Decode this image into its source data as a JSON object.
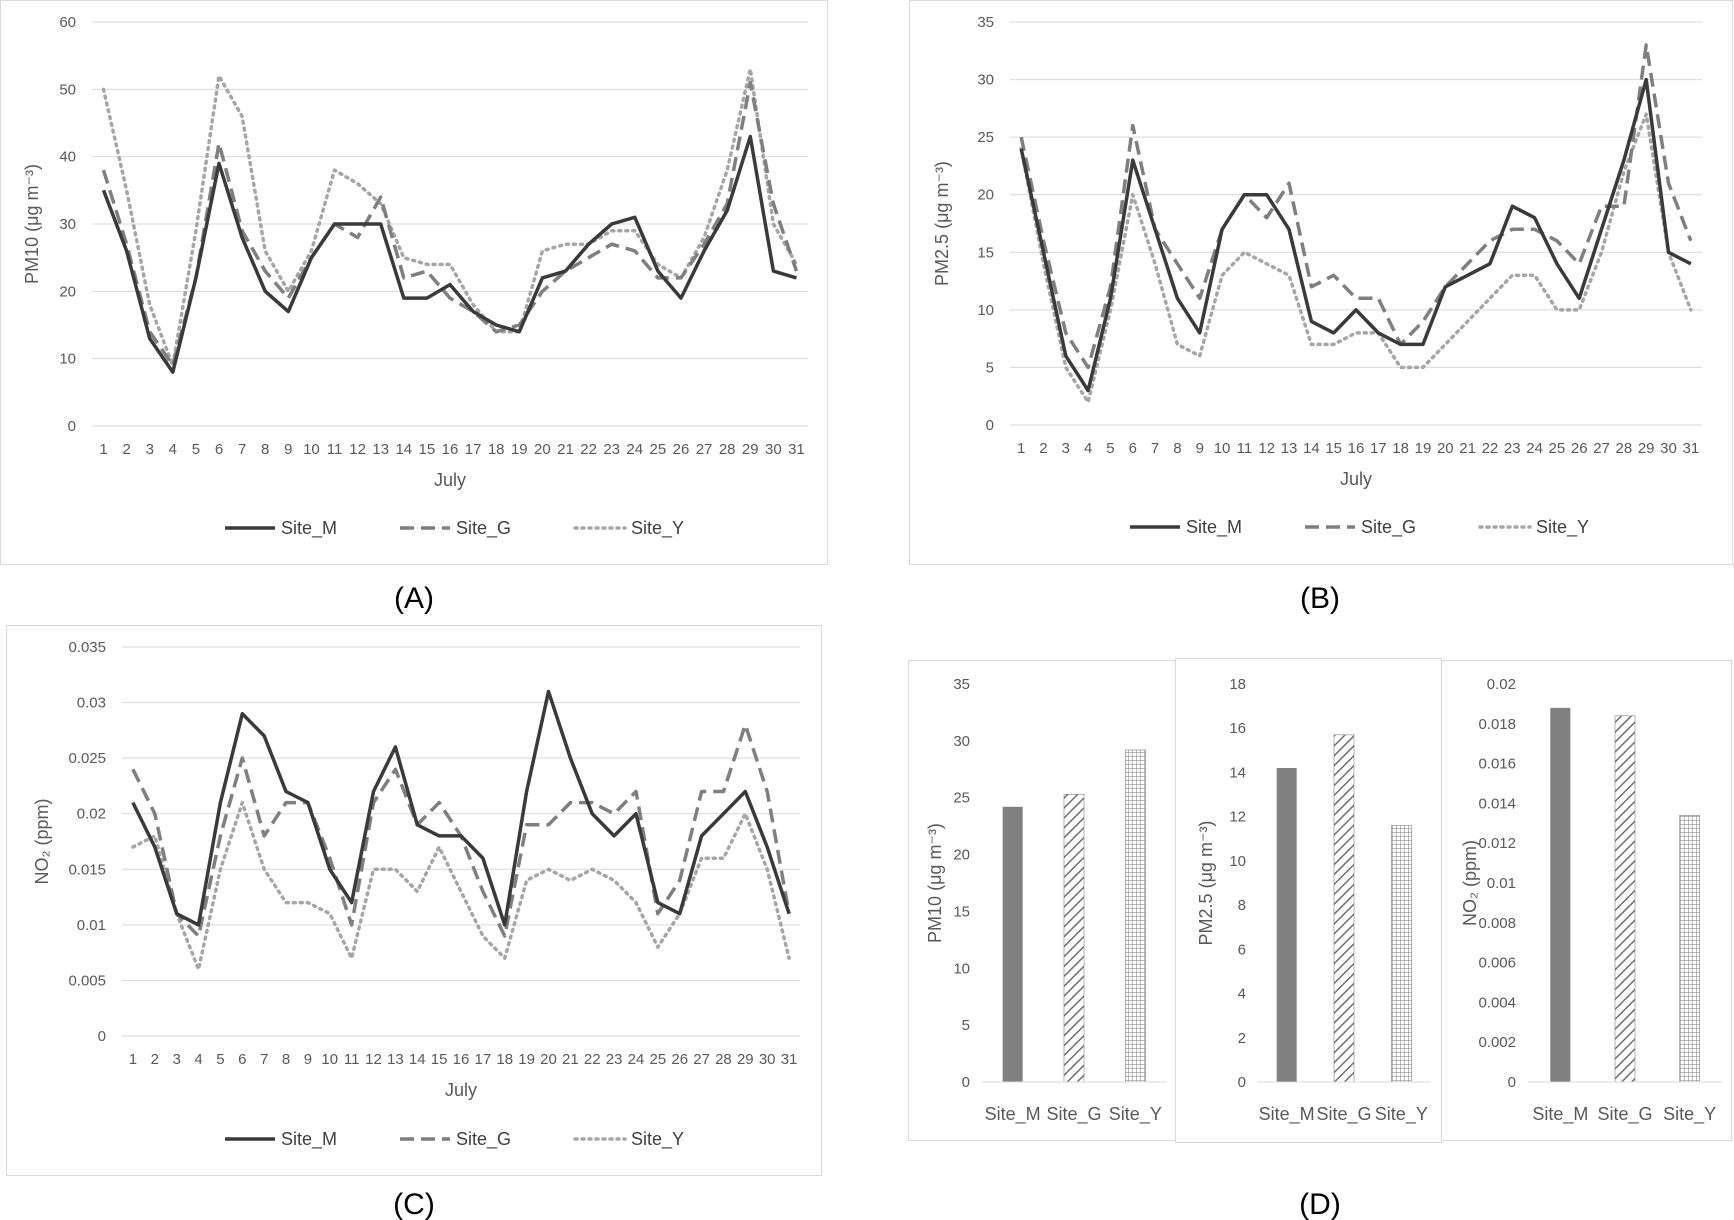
{
  "panel_labels": [
    "(A)",
    "(B)",
    "(C)",
    "(D)"
  ],
  "colors": {
    "site_m": "#3a3a3a",
    "site_g": "#7f7f7f",
    "site_y": "#a6a6a6",
    "grid": "#d9d9d9",
    "text": "#595959"
  },
  "chart_data": [
    {
      "id": "A",
      "type": "line",
      "xlabel": "July",
      "ylabel": "PM10 (μg m⁻³)",
      "ylim": [
        0,
        60
      ],
      "yticks": [
        "0",
        "10",
        "20",
        "30",
        "40",
        "50",
        "60"
      ],
      "x": [
        1,
        2,
        3,
        4,
        5,
        6,
        7,
        8,
        9,
        10,
        11,
        12,
        13,
        14,
        15,
        16,
        17,
        18,
        19,
        20,
        21,
        22,
        23,
        24,
        25,
        26,
        27,
        28,
        29,
        30,
        31
      ],
      "x_ticks": [
        "1",
        "2",
        "3",
        "4",
        "5",
        "6",
        "7",
        "8",
        "9",
        "10",
        "11",
        "12",
        "13",
        "14",
        "15",
        "16",
        "17",
        "18",
        "19",
        "20",
        "21",
        "22",
        "23",
        "24",
        "25",
        "26",
        "27",
        "28",
        "29",
        "30",
        "31"
      ],
      "legend": "bottom",
      "grid": true,
      "series": [
        {
          "name": "Site_M",
          "style": "solid",
          "values": [
            35,
            26,
            13,
            8,
            22,
            39,
            28,
            20,
            17,
            25,
            30,
            30,
            30,
            19,
            19,
            21,
            17,
            15,
            14,
            22,
            23,
            27,
            30,
            31,
            23,
            19,
            26,
            32,
            43,
            23,
            22
          ]
        },
        {
          "name": "Site_G",
          "style": "dashed",
          "values": [
            38,
            27,
            14,
            9,
            22,
            42,
            29,
            23,
            19,
            25,
            30,
            28,
            34,
            22,
            23,
            19,
            17,
            14,
            15,
            20,
            23,
            25,
            27,
            26,
            22,
            22,
            27,
            33,
            51,
            33,
            23
          ]
        },
        {
          "name": "Site_Y",
          "style": "dotted",
          "values": [
            50,
            35,
            18,
            9,
            29,
            52,
            46,
            26,
            20,
            26,
            38,
            36,
            33,
            25,
            24,
            24,
            18,
            14,
            14,
            26,
            27,
            27,
            29,
            29,
            24,
            22,
            28,
            38,
            53,
            30,
            24
          ]
        }
      ]
    },
    {
      "id": "B",
      "type": "line",
      "xlabel": "July",
      "ylabel": "PM2.5 (μg m⁻³)",
      "ylim": [
        0,
        35
      ],
      "yticks": [
        "0",
        "5",
        "10",
        "15",
        "20",
        "25",
        "30",
        "35"
      ],
      "x": [
        1,
        2,
        3,
        4,
        5,
        6,
        7,
        8,
        9,
        10,
        11,
        12,
        13,
        14,
        15,
        16,
        17,
        18,
        19,
        20,
        21,
        22,
        23,
        24,
        25,
        26,
        27,
        28,
        29,
        30,
        31
      ],
      "x_ticks": [
        "1",
        "2",
        "3",
        "4",
        "5",
        "6",
        "7",
        "8",
        "9",
        "10",
        "11",
        "12",
        "13",
        "14",
        "15",
        "16",
        "17",
        "18",
        "19",
        "20",
        "21",
        "22",
        "23",
        "24",
        "25",
        "26",
        "27",
        "28",
        "29",
        "30",
        "31"
      ],
      "legend": "bottom",
      "grid": true,
      "series": [
        {
          "name": "Site_M",
          "style": "solid",
          "values": [
            24,
            15,
            6,
            3,
            11,
            23,
            17,
            11,
            8,
            17,
            20,
            20,
            17,
            9,
            8,
            10,
            8,
            7,
            7,
            12,
            13,
            14,
            19,
            18,
            14,
            11,
            17,
            23,
            30,
            15,
            14
          ]
        },
        {
          "name": "Site_G",
          "style": "dashed",
          "values": [
            25,
            16,
            8,
            5,
            12,
            26,
            17,
            14,
            11,
            17,
            20,
            18,
            21,
            12,
            13,
            11,
            11,
            7,
            9,
            12,
            14,
            16,
            17,
            17,
            16,
            14,
            19,
            19,
            33,
            21,
            16
          ]
        },
        {
          "name": "Site_Y",
          "style": "dotted",
          "values": [
            24,
            14,
            5,
            2,
            10,
            20,
            14,
            7,
            6,
            13,
            15,
            14,
            13,
            7,
            7,
            8,
            8,
            5,
            5,
            7,
            9,
            11,
            13,
            13,
            10,
            10,
            15,
            22,
            27,
            15,
            10
          ]
        }
      ]
    },
    {
      "id": "C",
      "type": "line",
      "xlabel": "July",
      "ylabel": "NO₂ (ppm)",
      "ylim": [
        0,
        0.035
      ],
      "yticks": [
        "0",
        "0.005",
        "0.01",
        "0.015",
        "0.02",
        "0.025",
        "0.03",
        "0.035"
      ],
      "x": [
        1,
        2,
        3,
        4,
        5,
        6,
        7,
        8,
        9,
        10,
        11,
        12,
        13,
        14,
        15,
        16,
        17,
        18,
        19,
        20,
        21,
        22,
        23,
        24,
        25,
        26,
        27,
        28,
        29,
        30,
        31
      ],
      "x_ticks": [
        "1",
        "2",
        "3",
        "4",
        "5",
        "6",
        "7",
        "8",
        "9",
        "10",
        "11",
        "12",
        "13",
        "14",
        "15",
        "16",
        "17",
        "18",
        "19",
        "20",
        "21",
        "22",
        "23",
        "24",
        "25",
        "26",
        "27",
        "28",
        "29",
        "30",
        "31"
      ],
      "legend": "bottom",
      "grid": true,
      "series": [
        {
          "name": "Site_M",
          "style": "solid",
          "values": [
            0.021,
            0.017,
            0.011,
            0.01,
            0.021,
            0.029,
            0.027,
            0.022,
            0.021,
            0.015,
            0.012,
            0.022,
            0.026,
            0.019,
            0.018,
            0.018,
            0.016,
            0.01,
            0.022,
            0.031,
            0.025,
            0.02,
            0.018,
            0.02,
            0.012,
            0.011,
            0.018,
            0.02,
            0.022,
            0.017,
            0.011
          ]
        },
        {
          "name": "Site_G",
          "style": "dashed",
          "values": [
            0.024,
            0.02,
            0.011,
            0.009,
            0.018,
            0.025,
            0.018,
            0.021,
            0.021,
            0.016,
            0.01,
            0.021,
            0.024,
            0.019,
            0.021,
            0.018,
            0.013,
            0.009,
            0.019,
            0.019,
            0.021,
            0.021,
            0.02,
            0.022,
            0.011,
            0.014,
            0.022,
            0.022,
            0.028,
            0.022,
            0.011
          ]
        },
        {
          "name": "Site_Y",
          "style": "dotted",
          "values": [
            0.017,
            0.018,
            0.011,
            0.006,
            0.015,
            0.021,
            0.015,
            0.012,
            0.012,
            0.011,
            0.007,
            0.015,
            0.015,
            0.013,
            0.017,
            0.013,
            0.009,
            0.007,
            0.014,
            0.015,
            0.014,
            0.015,
            0.014,
            0.012,
            0.008,
            0.011,
            0.016,
            0.016,
            0.02,
            0.015,
            0.007
          ]
        }
      ]
    },
    {
      "id": "D1",
      "type": "bar",
      "ylabel": "PM10 (μg m⁻³)",
      "ylim": [
        0,
        35
      ],
      "yticks": [
        "0",
        "5",
        "10",
        "15",
        "20",
        "25",
        "30",
        "35"
      ],
      "categories": [
        "Site_M",
        "Site_G",
        "Site_Y"
      ],
      "values": [
        24.2,
        25.3,
        29.2
      ],
      "patterns": [
        "solid",
        "diagonal",
        "grid"
      ]
    },
    {
      "id": "D2",
      "type": "bar",
      "ylabel": "PM2.5 (μg m⁻³)",
      "ylim": [
        0,
        18
      ],
      "yticks": [
        "0",
        "2",
        "4",
        "6",
        "8",
        "10",
        "12",
        "14",
        "16",
        "18"
      ],
      "categories": [
        "Site_M",
        "Site_G",
        "Site_Y"
      ],
      "values": [
        14.2,
        15.7,
        11.6
      ],
      "patterns": [
        "solid",
        "diagonal",
        "grid"
      ]
    },
    {
      "id": "D3",
      "type": "bar",
      "ylabel": "NO₂ (ppm)",
      "ylim": [
        0,
        0.02
      ],
      "yticks": [
        "0",
        "0.002",
        "0.004",
        "0.006",
        "0.008",
        "0.01",
        "0.012",
        "0.014",
        "0.016",
        "0.018",
        "0.02"
      ],
      "categories": [
        "Site_M",
        "Site_G",
        "Site_Y"
      ],
      "values": [
        0.0188,
        0.0184,
        0.0134
      ],
      "patterns": [
        "solid",
        "diagonal",
        "grid"
      ]
    }
  ]
}
